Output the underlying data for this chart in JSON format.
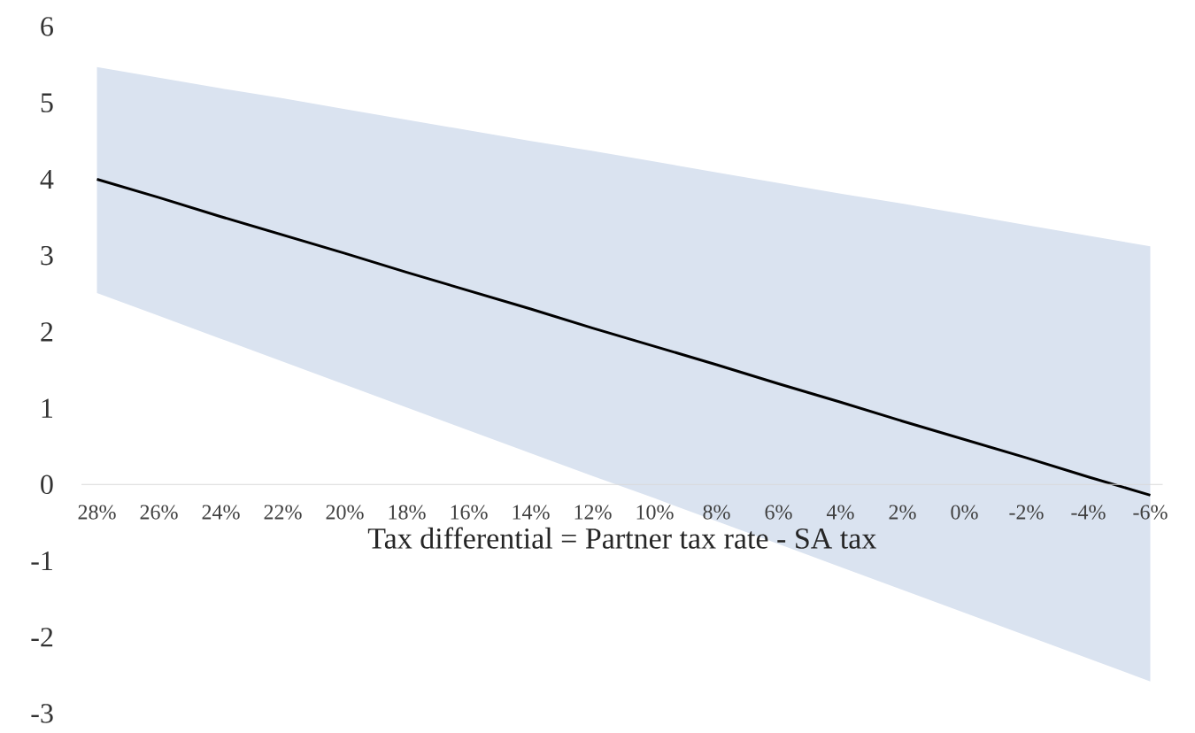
{
  "chart_data": {
    "type": "line",
    "xlabel": "Tax differential = Partner tax rate - SA tax",
    "categories": [
      "28%",
      "26%",
      "24%",
      "22%",
      "20%",
      "18%",
      "16%",
      "14%",
      "12%",
      "10%",
      "8%",
      "6%",
      "4%",
      "2%",
      "0%",
      "-2%",
      "-4%",
      "-6%"
    ],
    "series": [
      {
        "color": "#000000",
        "values": [
          4.0,
          3.76,
          3.51,
          3.27,
          3.03,
          2.78,
          2.54,
          2.3,
          2.05,
          1.81,
          1.57,
          1.32,
          1.08,
          0.83,
          0.59,
          0.35,
          0.1,
          -0.14
        ],
        "upper": [
          5.47,
          5.33,
          5.19,
          5.06,
          4.92,
          4.78,
          4.64,
          4.5,
          4.37,
          4.23,
          4.09,
          3.95,
          3.81,
          3.68,
          3.54,
          3.4,
          3.26,
          3.12
        ],
        "lower": [
          2.51,
          2.21,
          1.91,
          1.61,
          1.31,
          1.01,
          0.71,
          0.41,
          0.11,
          -0.18,
          -0.48,
          -0.78,
          -1.08,
          -1.38,
          -1.68,
          -1.98,
          -2.28,
          -2.58
        ]
      }
    ],
    "ylim": [
      -3,
      6
    ],
    "yticks": [
      -3,
      -2,
      -1,
      0,
      1,
      2,
      3,
      4,
      5,
      6
    ],
    "grid": false
  }
}
